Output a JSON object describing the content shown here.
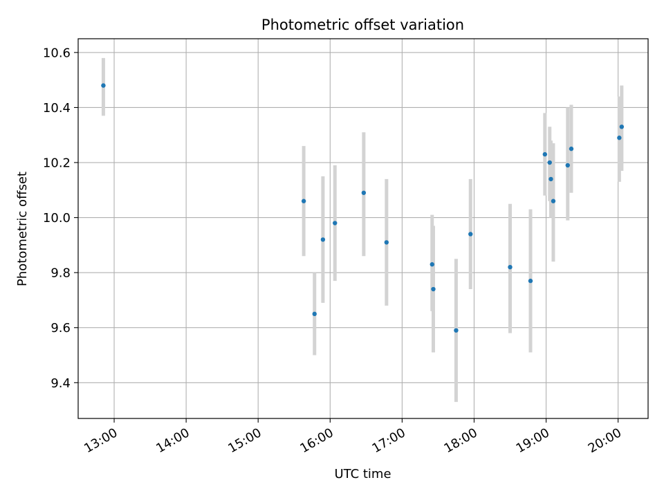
{
  "chart_data": {
    "type": "scatter",
    "title": "Photometric offset variation",
    "xlabel": "UTC time",
    "ylabel": "Photometric offset",
    "x_scale": "time",
    "xlim": [
      "12:30",
      "20:25"
    ],
    "ylim": [
      9.27,
      10.65
    ],
    "x_ticks": [
      "13:00",
      "14:00",
      "15:00",
      "16:00",
      "17:00",
      "18:00",
      "19:00",
      "20:00"
    ],
    "y_ticks": [
      9.4,
      9.6,
      9.8,
      10.0,
      10.2,
      10.4,
      10.6
    ],
    "y_tick_labels": [
      "9.4",
      "9.6",
      "9.8",
      "10.0",
      "10.2",
      "10.4",
      "10.6"
    ],
    "grid": true,
    "legend": "none",
    "colors": {
      "marker": "#1f77b4",
      "errorbar": "#d3d3d3",
      "grid": "#b0b0b0"
    },
    "points": [
      {
        "x": "12:51",
        "y": 10.48,
        "yerr": [
          10.37,
          10.58
        ]
      },
      {
        "x": "15:38",
        "y": 10.06,
        "yerr": [
          9.86,
          10.26
        ]
      },
      {
        "x": "15:47",
        "y": 9.65,
        "yerr": [
          9.5,
          9.8
        ]
      },
      {
        "x": "15:54",
        "y": 9.92,
        "yerr": [
          9.69,
          10.15
        ]
      },
      {
        "x": "16:04",
        "y": 9.98,
        "yerr": [
          9.77,
          10.19
        ]
      },
      {
        "x": "16:28",
        "y": 10.09,
        "yerr": [
          9.86,
          10.31
        ]
      },
      {
        "x": "16:47",
        "y": 9.91,
        "yerr": [
          9.68,
          10.14
        ]
      },
      {
        "x": "17:25",
        "y": 9.83,
        "yerr": [
          9.66,
          10.01
        ]
      },
      {
        "x": "17:26",
        "y": 9.74,
        "yerr": [
          9.51,
          9.97
        ]
      },
      {
        "x": "17:45",
        "y": 9.59,
        "yerr": [
          9.33,
          9.85
        ]
      },
      {
        "x": "17:57",
        "y": 9.94,
        "yerr": [
          9.74,
          10.14
        ]
      },
      {
        "x": "18:30",
        "y": 9.82,
        "yerr": [
          9.58,
          10.05
        ]
      },
      {
        "x": "18:47",
        "y": 9.77,
        "yerr": [
          9.51,
          10.03
        ]
      },
      {
        "x": "18:59",
        "y": 10.23,
        "yerr": [
          10.08,
          10.38
        ]
      },
      {
        "x": "19:03",
        "y": 10.2,
        "yerr": [
          10.06,
          10.33
        ]
      },
      {
        "x": "19:04",
        "y": 10.14,
        "yerr": [
          10.0,
          10.28
        ]
      },
      {
        "x": "19:06",
        "y": 10.06,
        "yerr": [
          9.84,
          10.27
        ]
      },
      {
        "x": "19:18",
        "y": 10.19,
        "yerr": [
          9.99,
          10.4
        ]
      },
      {
        "x": "19:21",
        "y": 10.25,
        "yerr": [
          10.09,
          10.41
        ]
      },
      {
        "x": "20:01",
        "y": 10.29,
        "yerr": [
          10.13,
          10.44
        ]
      },
      {
        "x": "20:03",
        "y": 10.33,
        "yerr": [
          10.17,
          10.48
        ]
      }
    ]
  }
}
